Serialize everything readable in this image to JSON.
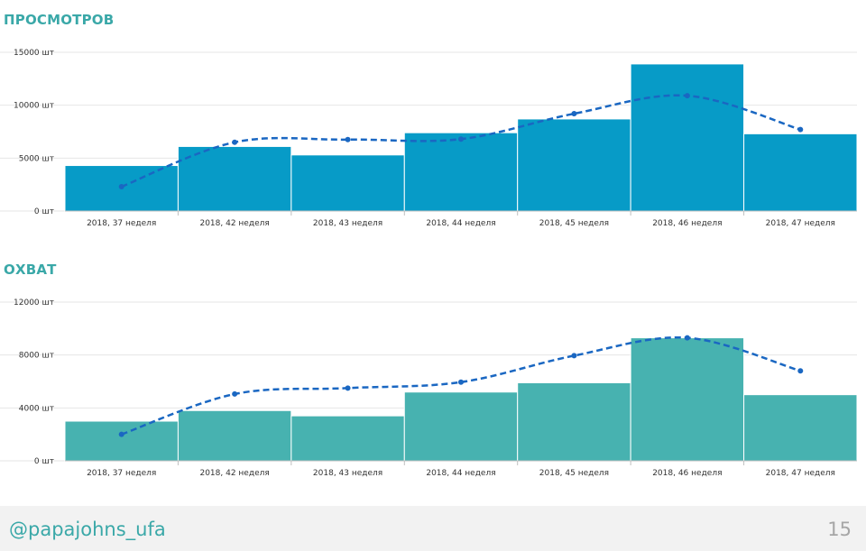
{
  "colors": {
    "title": "#3aa8a8",
    "bars_views": "#079bc7",
    "bars_reach": "#47b2b0",
    "trend_line": "#1a67c2",
    "grid": "#e6e6e6",
    "footer_text": "#3aa8a8"
  },
  "chart_data": [
    {
      "type": "bar",
      "title": "ПРОСМОТРОВ",
      "categories": [
        "2018, 37 неделя",
        "2018, 42 неделя",
        "2018, 43 неделя",
        "2018, 44 неделя",
        "2018, 45 неделя",
        "2018, 46 неделя",
        "2018, 47 неделя"
      ],
      "values": [
        4300,
        6100,
        5300,
        7400,
        8700,
        13900,
        7300
      ],
      "trend_values": [
        2300,
        6500,
        6750,
        6800,
        9200,
        10900,
        7700
      ],
      "trend_style": "dashed-smooth",
      "ylim": [
        0,
        15000
      ],
      "yticks": [
        0,
        5000,
        10000,
        15000
      ],
      "ytick_labels": [
        "0 шт",
        "5000 шт",
        "10000 шт",
        "15000 шт"
      ],
      "xlabel": "",
      "ylabel": "",
      "grid": true
    },
    {
      "type": "bar",
      "title": "ОХВАТ",
      "categories": [
        "2018, 37 неделя",
        "2018, 42 неделя",
        "2018, 43 неделя",
        "2018, 44 неделя",
        "2018, 45 неделя",
        "2018, 46 неделя",
        "2018, 47 неделя"
      ],
      "values": [
        3000,
        3800,
        3400,
        5200,
        5900,
        9300,
        5000
      ],
      "trend_values": [
        2000,
        5050,
        5500,
        5950,
        7950,
        9300,
        6800
      ],
      "trend_style": "dashed-smooth",
      "ylim": [
        0,
        12000
      ],
      "yticks": [
        0,
        4000,
        8000,
        12000
      ],
      "ytick_labels": [
        "0 шт",
        "4000 шт",
        "8000 шт",
        "12000 шт"
      ],
      "xlabel": "",
      "ylabel": "",
      "grid": true
    }
  ],
  "footer": {
    "handle": "@papajohns_ufa",
    "page_number": "15"
  }
}
